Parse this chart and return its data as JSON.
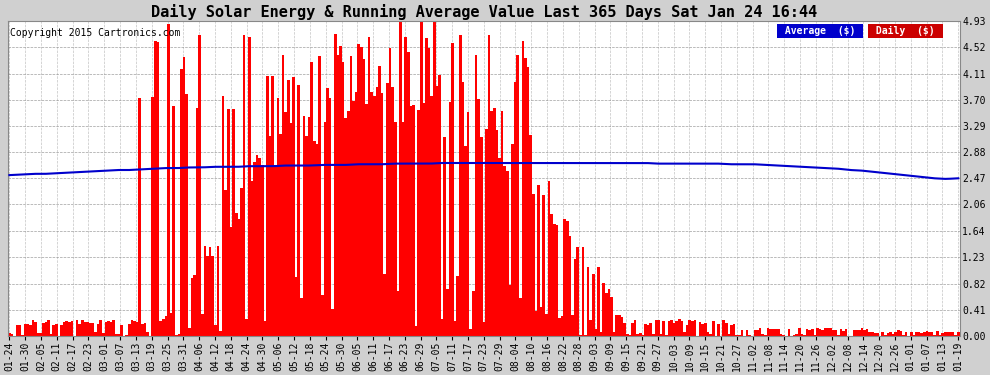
{
  "title": "Daily Solar Energy & Running Average Value Last 365 Days Sat Jan 24 16:44",
  "copyright": "Copyright 2015 Cartronics.com",
  "ylim": [
    0.0,
    4.93
  ],
  "yticks": [
    0.0,
    0.41,
    0.82,
    1.23,
    1.64,
    2.06,
    2.47,
    2.88,
    3.29,
    3.7,
    4.11,
    4.52,
    4.93
  ],
  "bar_color": "#ff0000",
  "avg_color": "#0000cc",
  "background_color": "#d0d0d0",
  "plot_bg_color": "#ffffff",
  "grid_color": "#888888",
  "legend_avg_bg": "#0000cc",
  "legend_daily_bg": "#cc0000",
  "legend_text": "Average  ($)",
  "legend_daily_text": "Daily  ($)",
  "title_fontsize": 11,
  "copyright_fontsize": 7,
  "tick_fontsize": 7,
  "n_days": 365,
  "xtick_labels": [
    "01-24",
    "01-30",
    "02-05",
    "02-11",
    "02-17",
    "02-23",
    "03-01",
    "03-07",
    "03-13",
    "03-19",
    "03-25",
    "03-31",
    "04-06",
    "04-12",
    "04-18",
    "04-24",
    "04-30",
    "05-06",
    "05-12",
    "05-18",
    "05-24",
    "05-30",
    "06-05",
    "06-11",
    "06-17",
    "06-23",
    "06-29",
    "07-05",
    "07-11",
    "07-17",
    "07-23",
    "07-29",
    "08-04",
    "08-10",
    "08-16",
    "08-22",
    "08-28",
    "09-03",
    "09-09",
    "09-15",
    "09-21",
    "09-27",
    "10-03",
    "10-09",
    "10-15",
    "10-21",
    "10-27",
    "11-02",
    "11-08",
    "11-14",
    "11-20",
    "11-26",
    "12-02",
    "12-08",
    "12-14",
    "12-20",
    "12-26",
    "01-01",
    "01-07",
    "01-13",
    "01-19"
  ],
  "avg_line_points": [
    2.52,
    2.53,
    2.54,
    2.54,
    2.55,
    2.56,
    2.57,
    2.58,
    2.59,
    2.6,
    2.6,
    2.61,
    2.62,
    2.63,
    2.63,
    2.64,
    2.64,
    2.65,
    2.65,
    2.65,
    2.66,
    2.66,
    2.66,
    2.67,
    2.67,
    2.67,
    2.68,
    2.68,
    2.68,
    2.69,
    2.69,
    2.69,
    2.7,
    2.7,
    2.7,
    2.7,
    2.71,
    2.71,
    2.71,
    2.71,
    2.71,
    2.71,
    2.71,
    2.71,
    2.71,
    2.71,
    2.71,
    2.71,
    2.71,
    2.71,
    2.71,
    2.71,
    2.71,
    2.71,
    2.7,
    2.7,
    2.7,
    2.7,
    2.7,
    2.7,
    2.69,
    2.69,
    2.69,
    2.68,
    2.67,
    2.66,
    2.65,
    2.64,
    2.63,
    2.62,
    2.6,
    2.59,
    2.57,
    2.55,
    2.53,
    2.51,
    2.49,
    2.47,
    2.46,
    2.47
  ]
}
